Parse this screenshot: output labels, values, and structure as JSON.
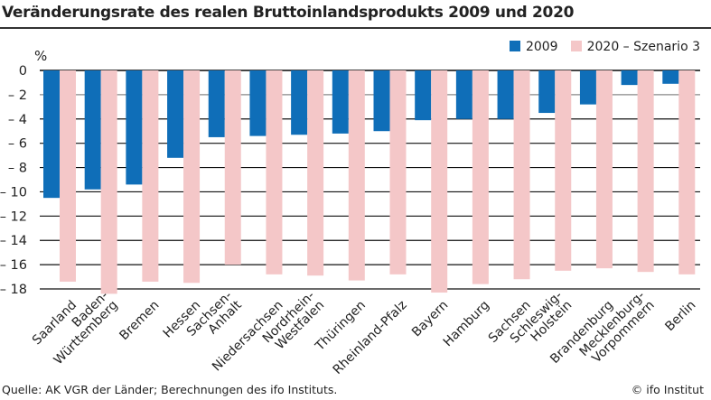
{
  "chart_data": {
    "type": "bar",
    "title": "Veränderungsrate des realen Bruttoinlandsprodukts 2009 und 2020",
    "ylabel": "%",
    "xlabel": "",
    "ylim": [
      -18,
      0
    ],
    "yticks": [
      0,
      -2,
      -4,
      -6,
      -8,
      -10,
      -12,
      -14,
      -16,
      -18
    ],
    "ytick_labels": [
      "0",
      "– 2",
      "– 4",
      "– 6",
      "– 8",
      "– 10",
      "– 12",
      "– 14",
      "– 16",
      "– 18"
    ],
    "grid": true,
    "legend_position": "top-right",
    "categories": [
      "Saarland",
      "Baden-\nWürttemberg",
      "Bremen",
      "Hessen",
      "Sachsen-\nAnhalt",
      "Niedersachsen",
      "Nordrhein-\nWestfalen",
      "Thüringen",
      "Rheinland-Pfalz",
      "Bayern",
      "Hamburg",
      "Sachsen",
      "Schleswig-\nHolstein",
      "Brandenburg",
      "Mecklenburg-\nVorpommern",
      "Berlin"
    ],
    "series": [
      {
        "name": "2009",
        "color": "#0f6eb8",
        "values": [
          -10.5,
          -9.8,
          -9.4,
          -7.2,
          -5.5,
          -5.4,
          -5.3,
          -5.2,
          -5.0,
          -4.1,
          -4.0,
          -4.0,
          -3.5,
          -2.8,
          -1.2,
          -1.1
        ]
      },
      {
        "name": "2020 – Szenario 3",
        "color": "#f4c7c8",
        "values": [
          -17.4,
          -18.4,
          -17.4,
          -17.5,
          -16.0,
          -16.8,
          -16.9,
          -17.3,
          -16.8,
          -18.3,
          -17.6,
          -17.2,
          -16.5,
          -16.3,
          -16.6,
          -16.8
        ]
      }
    ]
  },
  "footer": {
    "source": "Quelle: AK VGR der Länder; Berechnungen des ifo Instituts.",
    "credit": "© ifo Institut"
  }
}
